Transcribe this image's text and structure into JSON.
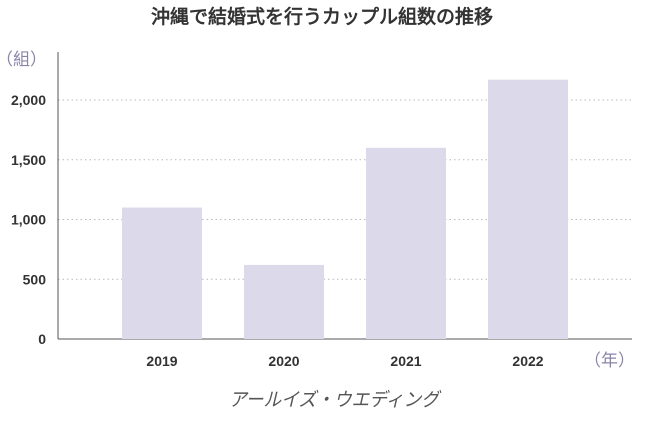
{
  "chart_data": {
    "type": "bar",
    "title": "沖縄で結婚式を行うカップル組数の推移",
    "ylabel": "（組）",
    "xlabel": "（年）",
    "categories": [
      "2019",
      "2020",
      "2021",
      "2022"
    ],
    "values": [
      1100,
      620,
      1600,
      2170
    ],
    "ylim": [
      0,
      2250
    ],
    "yticks": [
      {
        "value": 0,
        "label": "0"
      },
      {
        "value": 500,
        "label": "500"
      },
      {
        "value": 1000,
        "label": "1,000"
      },
      {
        "value": 1500,
        "label": "1,500"
      },
      {
        "value": 2000,
        "label": "2,000"
      }
    ],
    "grid": true,
    "bar_color": "#dcd9ea"
  },
  "brand": {
    "logo_text": "アールイズ・ウエディング"
  }
}
